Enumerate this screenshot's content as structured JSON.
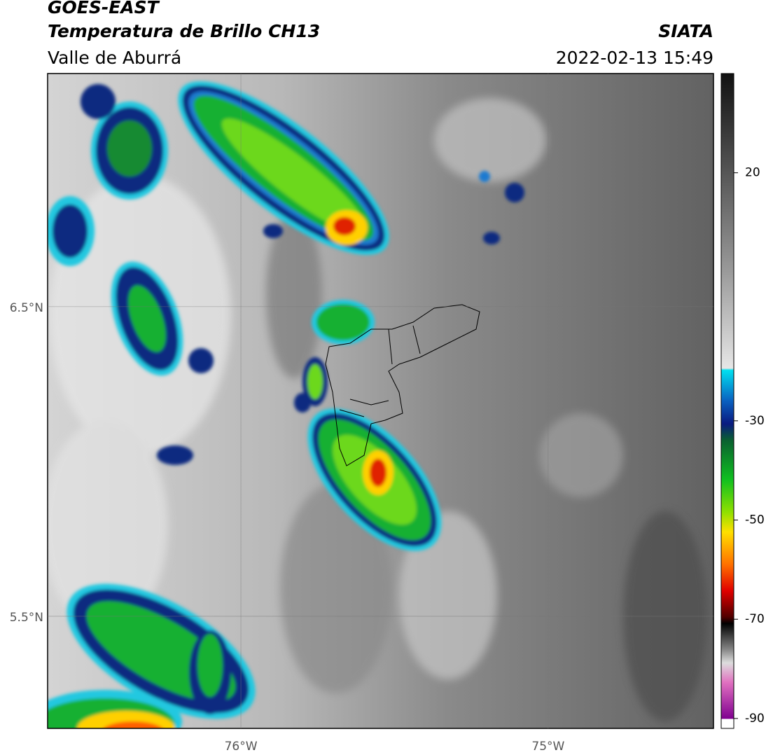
{
  "header": {
    "title": "GOES-EAST",
    "subtitle": "Temperatura de Brillo CH13",
    "region": "Valle de Aburrá",
    "source": "SIATA",
    "datetime": "2022-02-13 15:49"
  },
  "map": {
    "latlim": [
      5.138,
      7.253
    ],
    "lonlim": [
      -76.629,
      -74.462
    ],
    "lat_ticks": [
      {
        "value": 6.5,
        "label": "6.5°N"
      },
      {
        "value": 5.5,
        "label": "5.5°N"
      }
    ],
    "lon_ticks": [
      {
        "value": -76,
        "label": "76°W"
      },
      {
        "value": -75,
        "label": "75°W"
      }
    ]
  },
  "colorbar": {
    "lim": [
      -92,
      40
    ],
    "ticks": [
      20,
      -30,
      -50,
      -70,
      -90
    ]
  }
}
